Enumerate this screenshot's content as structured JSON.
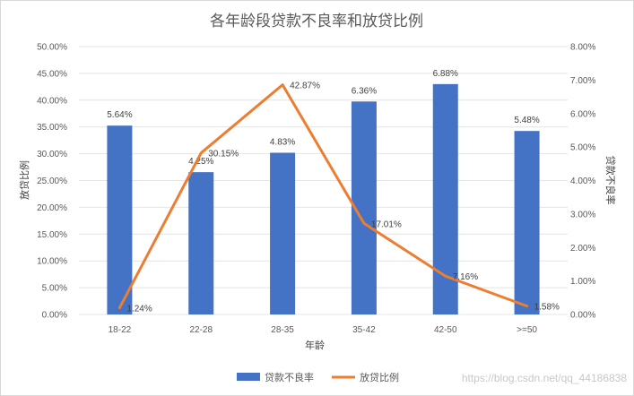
{
  "chart_data": {
    "type": "bar",
    "title": "各年龄段贷款不良率和放贷比例",
    "xlabel": "年龄",
    "ylabel_left": "放贷比例",
    "ylabel_right": "贷款不良率",
    "categories": [
      "18-22",
      "22-28",
      "28-35",
      "35-42",
      "42-50",
      ">=50"
    ],
    "series": [
      {
        "name": "贷款不良率",
        "type": "bar",
        "axis": "right",
        "color": "#4472C4",
        "values": [
          5.64,
          4.25,
          4.83,
          6.36,
          6.88,
          5.48
        ],
        "labels": [
          "5.64%",
          "4.25%",
          "4.83%",
          "6.36%",
          "6.88%",
          "5.48%"
        ]
      },
      {
        "name": "放贷比例",
        "type": "line",
        "axis": "left",
        "color": "#ED7D31",
        "values": [
          1.24,
          30.15,
          42.87,
          17.01,
          7.16,
          1.58
        ],
        "labels": [
          "1.24%",
          "30.15%",
          "42.87%",
          "17.01%",
          "7.16%",
          "1.58%"
        ]
      }
    ],
    "y_left": {
      "min": 0,
      "max": 50,
      "ticks": [
        "0.00%",
        "5.00%",
        "10.00%",
        "15.00%",
        "20.00%",
        "25.00%",
        "30.00%",
        "35.00%",
        "40.00%",
        "45.00%",
        "50.00%"
      ]
    },
    "y_right": {
      "min": 0,
      "max": 8,
      "ticks": [
        "0.00%",
        "1.00%",
        "2.00%",
        "3.00%",
        "4.00%",
        "5.00%",
        "6.00%",
        "7.00%",
        "8.00%"
      ]
    },
    "grid": true,
    "legend_position": "bottom-right"
  },
  "watermark": "https://blog.csdn.net/qq_44186838"
}
